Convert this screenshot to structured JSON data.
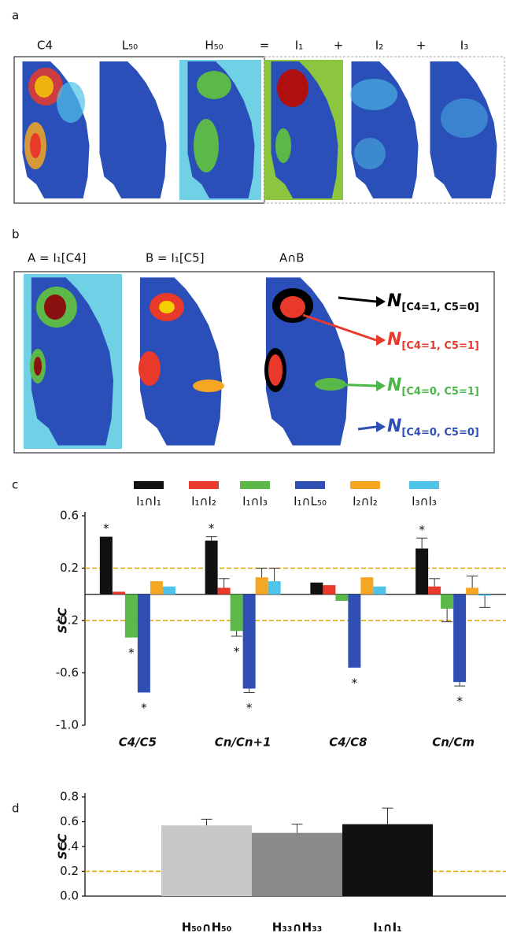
{
  "panel_labels": [
    "a",
    "b",
    "c",
    "d"
  ],
  "panel_a": {
    "headers": [
      "C4",
      "L₅₀",
      "H₅₀",
      "=",
      "I₁",
      "+",
      "I₂",
      "+",
      "I₃"
    ]
  },
  "panel_b": {
    "headers": [
      "A = I₁[C4]",
      "B = I₁[C5]",
      "A∩B"
    ],
    "legend": [
      {
        "symbol": "N",
        "subscript": "[C4=1, C5=0]",
        "color": "#000000"
      },
      {
        "symbol": "N",
        "subscript": "[C4=1, C5=1]",
        "color": "#e8392a"
      },
      {
        "symbol": "N",
        "subscript": "[C4=0, C5=1]",
        "color": "#4cb648"
      },
      {
        "symbol": "N",
        "subscript": "[C4=0, C5=0]",
        "color": "#2f4fb5"
      }
    ]
  },
  "chart_data": [
    {
      "type": "bar",
      "y_label": "SCC",
      "categories": [
        "C4/C5",
        "Cn/Cn+1",
        "C4/C8",
        "Cn/Cm"
      ],
      "series": [
        {
          "name": "I₁∩I₁",
          "color": "#111111",
          "values": [
            0.44,
            0.41,
            0.09,
            0.35
          ],
          "errors": [
            null,
            0.03,
            null,
            0.08
          ],
          "marks": [
            "*",
            "*",
            null,
            "*"
          ]
        },
        {
          "name": "I₁∩I₂",
          "color": "#e8392a",
          "values": [
            0.02,
            0.05,
            0.07,
            0.06
          ],
          "errors": [
            null,
            0.07,
            null,
            0.06
          ]
        },
        {
          "name": "I₁∩I₃",
          "color": "#5cb848",
          "values": [
            -0.33,
            -0.28,
            -0.05,
            -0.11
          ],
          "errors": [
            null,
            0.04,
            null,
            0.1
          ],
          "marks": [
            "*",
            "*",
            null,
            null
          ]
        },
        {
          "name": "I₁∩L₅₀",
          "color": "#2f4fb5",
          "values": [
            -0.75,
            -0.72,
            -0.56,
            -0.67
          ],
          "errors": [
            null,
            0.03,
            null,
            0.03
          ],
          "marks": [
            "*",
            "*",
            "*",
            "*"
          ]
        },
        {
          "name": "I₂∩I₂",
          "color": "#f5a623",
          "values": [
            0.1,
            0.13,
            0.13,
            0.05
          ],
          "errors": [
            null,
            0.07,
            null,
            0.09
          ]
        },
        {
          "name": "I₃∩I₃",
          "color": "#4fc3e8",
          "values": [
            0.06,
            0.1,
            0.06,
            -0.01
          ],
          "errors": [
            null,
            0.1,
            null,
            0.09
          ]
        }
      ],
      "ylim": [
        -1,
        0.6
      ],
      "yticks": [
        0.6,
        0.2,
        -0.2,
        -0.6,
        {
          "value": -1,
          "label": "-1.0"
        }
      ],
      "reference_lines": [
        0.2,
        -0.2
      ],
      "reference_color": "#d9a400"
    },
    {
      "type": "bar",
      "y_label": "SCC",
      "categories": [
        "H₅₀∩H₅₀",
        "H₃₃∩H₃₃",
        "I₁∩I₁"
      ],
      "values": [
        0.57,
        0.51,
        0.58
      ],
      "errors": [
        0.05,
        0.07,
        0.13
      ],
      "colors": [
        "#c8c8c8",
        "#8a8a8a",
        "#111111"
      ],
      "ylim": [
        0,
        0.8
      ],
      "yticks": [
        {
          "value": 0,
          "label": "0.0"
        },
        0.2,
        0.4,
        0.6,
        0.8
      ],
      "reference_lines": [
        0.2
      ],
      "reference_color": "#d9a400"
    }
  ]
}
